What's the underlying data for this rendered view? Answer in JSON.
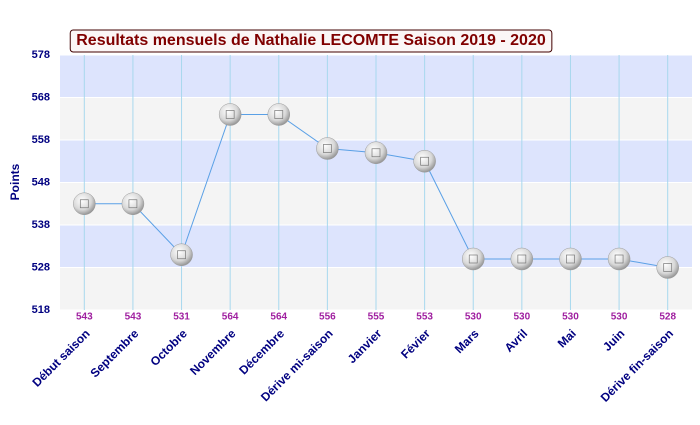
{
  "chart_data": {
    "type": "line",
    "title": "Resultats mensuels de Nathalie LECOMTE Saison 2019 - 2020",
    "y_label": "Points",
    "categories": [
      "Début saison",
      "Septembre",
      "Octobre",
      "Novembre",
      "Décembre",
      "Dérive mi-saison",
      "Janvier",
      "Févier",
      "Mars",
      "Avril",
      "Mai",
      "Juin",
      "Dérive fin-saison"
    ],
    "values": [
      543,
      543,
      531,
      564,
      564,
      556,
      555,
      553,
      530,
      530,
      530,
      530,
      528
    ],
    "color": "#5aa0e6",
    "ylim": [
      518,
      578
    ],
    "yticks": [
      518,
      528,
      538,
      548,
      558,
      568,
      578
    ],
    "grid": true,
    "band_colors": [
      "#f4f4f4",
      "#dde4fd"
    ]
  }
}
